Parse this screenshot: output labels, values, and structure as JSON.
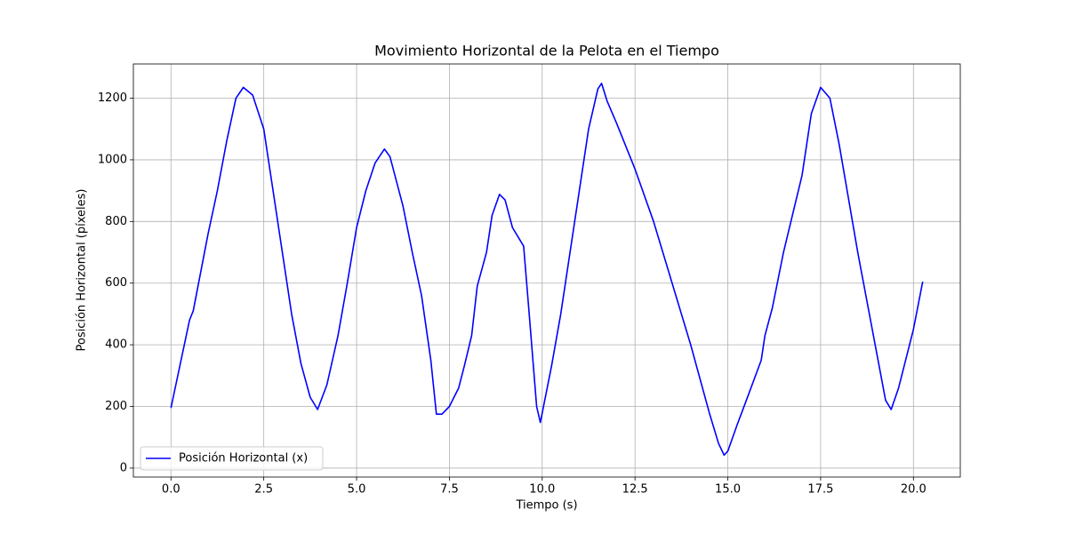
{
  "chart_data": {
    "type": "line",
    "title": "Movimiento Horizontal de la Pelota en el Tiempo",
    "x_label": "Tiempo (s)",
    "y_label": "Posición Horizontal (píxeles)",
    "x": [
      0,
      0.5,
      0.6,
      1.0,
      1.25,
      1.5,
      1.75,
      1.95,
      2.2,
      2.5,
      2.75,
      3.0,
      3.25,
      3.5,
      3.75,
      3.95,
      4.2,
      4.5,
      4.75,
      5.0,
      5.25,
      5.5,
      5.75,
      5.9,
      6.25,
      6.5,
      6.75,
      7.0,
      7.15,
      7.3,
      7.5,
      7.75,
      7.9,
      8.1,
      8.25,
      8.5,
      8.65,
      8.85,
      9.0,
      9.2,
      9.5,
      9.65,
      9.85,
      9.95,
      10.25,
      10.5,
      11.0,
      11.25,
      11.5,
      11.6,
      11.75,
      12.0,
      12.5,
      13.0,
      13.5,
      14.0,
      14.5,
      14.75,
      14.9,
      15.0,
      15.25,
      15.5,
      15.9,
      16.0,
      16.2,
      16.5,
      17.0,
      17.25,
      17.5,
      17.75,
      18.0,
      18.5,
      19.0,
      19.25,
      19.4,
      19.6,
      20.0,
      20.25
    ],
    "series": [
      {
        "name": "Posición Horizontal (x)",
        "color": "#0000ff",
        "values": [
          195,
          480,
          510,
          760,
          900,
          1060,
          1200,
          1235,
          1210,
          1100,
          900,
          700,
          500,
          340,
          230,
          190,
          270,
          430,
          600,
          780,
          900,
          990,
          1035,
          1010,
          850,
          700,
          560,
          350,
          175,
          175,
          200,
          260,
          330,
          430,
          590,
          700,
          820,
          888,
          870,
          780,
          720,
          500,
          200,
          148,
          330,
          500,
          900,
          1100,
          1230,
          1248,
          1190,
          1120,
          970,
          800,
          600,
          400,
          180,
          80,
          42,
          55,
          140,
          220,
          350,
          430,
          520,
          700,
          950,
          1150,
          1235,
          1200,
          1050,
          700,
          380,
          220,
          190,
          260,
          450,
          605
        ]
      }
    ],
    "xlim": [
      -1.0125,
      21.2625
    ],
    "ylim": [
      -29,
      1311
    ],
    "xticks": [
      {
        "value": 0,
        "label": "0.0"
      },
      2.5,
      {
        "value": 5,
        "label": "5.0"
      },
      7.5,
      {
        "value": 10,
        "label": "10.0"
      },
      12.5,
      {
        "value": 15,
        "label": "15.0"
      },
      17.5,
      {
        "value": 20,
        "label": "20.0"
      }
    ],
    "yticks": [
      0,
      200,
      400,
      600,
      800,
      1000,
      1200
    ],
    "grid": true,
    "legend": "lower left"
  }
}
